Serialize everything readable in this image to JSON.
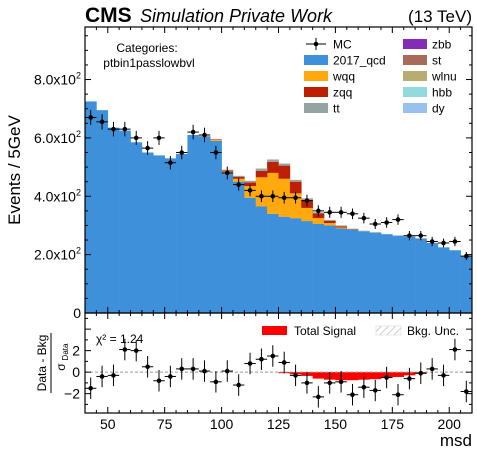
{
  "header": {
    "cms_label": "CMS",
    "subtitle": "Simulation Private Work",
    "energy": "(13 TeV)"
  },
  "categories_box": {
    "title": "Categories:",
    "name": "ptbin1passlowbvl"
  },
  "colors": {
    "2017_qcd": "#3f90da",
    "wqq": "#ffa90e",
    "zqq": "#bd1f01",
    "tt": "#94a4a2",
    "zbb": "#832db6",
    "st": "#a96b59",
    "wlnu": "#b9ac70",
    "hbb": "#92dadd",
    "dy": "#99c1f0",
    "signal": "#ff0000",
    "unc_hatch": "#c8c8c8"
  },
  "chart_data": [
    {
      "type": "bar",
      "stacked": true,
      "title": "",
      "xlabel": "",
      "ylabel": "Events / 5GeV",
      "xlim": [
        40,
        210
      ],
      "ylim": [
        0,
        980
      ],
      "bin_edges": [
        40,
        45,
        50,
        55,
        60,
        65,
        70,
        75,
        80,
        85,
        90,
        95,
        100,
        105,
        110,
        115,
        120,
        125,
        130,
        135,
        140,
        145,
        150,
        155,
        160,
        165,
        170,
        175,
        180,
        185,
        190,
        195,
        200,
        205,
        210
      ],
      "yticks": [
        200,
        400,
        600,
        800
      ],
      "ytick_labels": [
        "2.0x10^2",
        "4.0x10^2",
        "6.0x10^2",
        "8.0x10^2"
      ],
      "series": [
        {
          "name": "2017_qcd",
          "values": [
            725,
            695,
            635,
            625,
            585,
            550,
            540,
            530,
            545,
            610,
            605,
            590,
            480,
            450,
            395,
            365,
            340,
            330,
            325,
            315,
            305,
            300,
            290,
            285,
            280,
            275,
            270,
            265,
            262,
            255,
            240,
            225,
            215,
            195
          ]
        },
        {
          "name": "wqq",
          "values": [
            0,
            0,
            0,
            0,
            0,
            0,
            0,
            0,
            0,
            0,
            2,
            3,
            5,
            10,
            40,
            100,
            140,
            130,
            85,
            45,
            20,
            8,
            3,
            0,
            0,
            0,
            0,
            0,
            0,
            0,
            0,
            0,
            0,
            0
          ]
        },
        {
          "name": "zqq",
          "values": [
            0,
            0,
            0,
            0,
            0,
            0,
            0,
            0,
            0,
            0,
            0,
            2,
            3,
            6,
            12,
            22,
            38,
            45,
            40,
            28,
            16,
            8,
            4,
            2,
            0,
            0,
            0,
            0,
            0,
            0,
            0,
            0,
            0,
            0
          ]
        },
        {
          "name": "tt",
          "values": [
            0,
            0,
            0,
            0,
            0,
            0,
            0,
            0,
            0,
            0,
            0,
            0,
            3,
            4,
            6,
            8,
            8,
            7,
            6,
            5,
            4,
            3,
            3,
            2,
            2,
            2,
            1,
            1,
            1,
            1,
            0,
            0,
            0,
            0
          ]
        },
        {
          "name": "zbb",
          "values": [
            0,
            0,
            0,
            0,
            0,
            0,
            0,
            0,
            0,
            0,
            0,
            0,
            0,
            0,
            0,
            0,
            0,
            0,
            0,
            0,
            0,
            0,
            0,
            0,
            0,
            0,
            0,
            0,
            0,
            0,
            0,
            0,
            0,
            0
          ]
        },
        {
          "name": "st",
          "values": [
            0,
            0,
            0,
            0,
            0,
            0,
            0,
            0,
            0,
            0,
            0,
            0,
            0,
            0,
            0,
            0,
            0,
            0,
            0,
            0,
            0,
            0,
            0,
            0,
            0,
            0,
            0,
            0,
            0,
            0,
            0,
            0,
            0,
            0
          ]
        },
        {
          "name": "wlnu",
          "values": [
            0,
            0,
            0,
            0,
            0,
            0,
            0,
            0,
            0,
            0,
            0,
            0,
            0,
            0,
            0,
            0,
            0,
            0,
            0,
            0,
            0,
            0,
            0,
            0,
            0,
            0,
            0,
            0,
            0,
            0,
            0,
            0,
            0,
            0
          ]
        },
        {
          "name": "hbb",
          "values": [
            0,
            0,
            0,
            0,
            0,
            0,
            0,
            0,
            0,
            0,
            0,
            0,
            0,
            0,
            0,
            0,
            0,
            0,
            0,
            0,
            0,
            0,
            0,
            0,
            0,
            0,
            0,
            0,
            0,
            0,
            0,
            0,
            0,
            0
          ]
        },
        {
          "name": "dy",
          "values": [
            0,
            0,
            0,
            0,
            0,
            0,
            0,
            0,
            0,
            0,
            0,
            0,
            0,
            0,
            0,
            0,
            0,
            0,
            0,
            0,
            0,
            0,
            0,
            0,
            0,
            0,
            0,
            0,
            0,
            0,
            0,
            0,
            0,
            0
          ]
        }
      ],
      "data_points": {
        "name": "MC",
        "x": [
          42.5,
          47.5,
          52.5,
          57.5,
          62.5,
          67.5,
          72.5,
          77.5,
          82.5,
          87.5,
          92.5,
          97.5,
          102.5,
          107.5,
          112.5,
          117.5,
          122.5,
          127.5,
          132.5,
          137.5,
          142.5,
          147.5,
          152.5,
          157.5,
          162.5,
          167.5,
          172.5,
          177.5,
          182.5,
          187.5,
          192.5,
          197.5,
          202.5,
          207.5
        ],
        "y": [
          670,
          655,
          630,
          630,
          600,
          565,
          600,
          515,
          550,
          620,
          610,
          550,
          480,
          440,
          420,
          400,
          400,
          395,
          395,
          385,
          350,
          345,
          345,
          340,
          325,
          305,
          310,
          320,
          265,
          265,
          245,
          240,
          245,
          195
        ],
        "yerr": [
          26,
          26,
          25,
          25,
          24,
          24,
          24,
          23,
          23,
          25,
          25,
          23,
          22,
          21,
          20,
          20,
          20,
          20,
          20,
          20,
          19,
          19,
          19,
          18,
          18,
          17,
          18,
          18,
          16,
          16,
          16,
          15,
          16,
          14
        ]
      },
      "legend": {
        "placement": "top-right",
        "entries": [
          "MC",
          "2017_qcd",
          "wqq",
          "zqq",
          "tt",
          "zbb",
          "st",
          "wlnu",
          "hbb",
          "dy"
        ]
      }
    },
    {
      "type": "scatter",
      "title": "",
      "xlabel": "msd",
      "ylabel": "(Data - Bkg) / σData",
      "xlim": [
        40,
        210
      ],
      "ylim": [
        -3.8,
        5.5
      ],
      "xticks": [
        50,
        75,
        100,
        125,
        150,
        175,
        200
      ],
      "yticks": [
        -2,
        0,
        2,
        4
      ],
      "chi2_label": "χ² = 1.24",
      "pull_points": {
        "x": [
          42.5,
          47.5,
          52.5,
          57.5,
          62.5,
          67.5,
          72.5,
          77.5,
          82.5,
          87.5,
          92.5,
          97.5,
          102.5,
          107.5,
          112.5,
          117.5,
          122.5,
          127.5,
          132.5,
          137.5,
          142.5,
          147.5,
          152.5,
          157.5,
          162.5,
          167.5,
          172.5,
          177.5,
          182.5,
          187.5,
          192.5,
          197.5,
          202.5,
          207.5
        ],
        "y": [
          -1.5,
          -0.4,
          -0.3,
          2.1,
          2.0,
          0.5,
          -0.8,
          -0.4,
          0.3,
          0.3,
          0.1,
          -0.9,
          0.1,
          -1.2,
          0.8,
          1.2,
          1.5,
          0.9,
          -0.3,
          -1.0,
          -2.3,
          -1.0,
          -0.9,
          -2.1,
          -1.4,
          -1.7,
          -0.5,
          -2.1,
          -0.6,
          -0.1,
          0.3,
          -0.3,
          2.1,
          -1.8
        ]
      },
      "total_signal": {
        "bin_edges": [
          125,
          130,
          135,
          140,
          145,
          150,
          155,
          160,
          165,
          170,
          175,
          180,
          185,
          190
        ],
        "values": [
          -0.1,
          -0.2,
          -0.35,
          -0.6,
          -0.7,
          -0.75,
          -0.75,
          -0.7,
          -0.65,
          -0.55,
          -0.45,
          -0.3,
          -0.15
        ]
      },
      "legend": {
        "placement": "top-right",
        "entries": [
          "Total Signal",
          "Bkg. Unc."
        ]
      }
    }
  ]
}
